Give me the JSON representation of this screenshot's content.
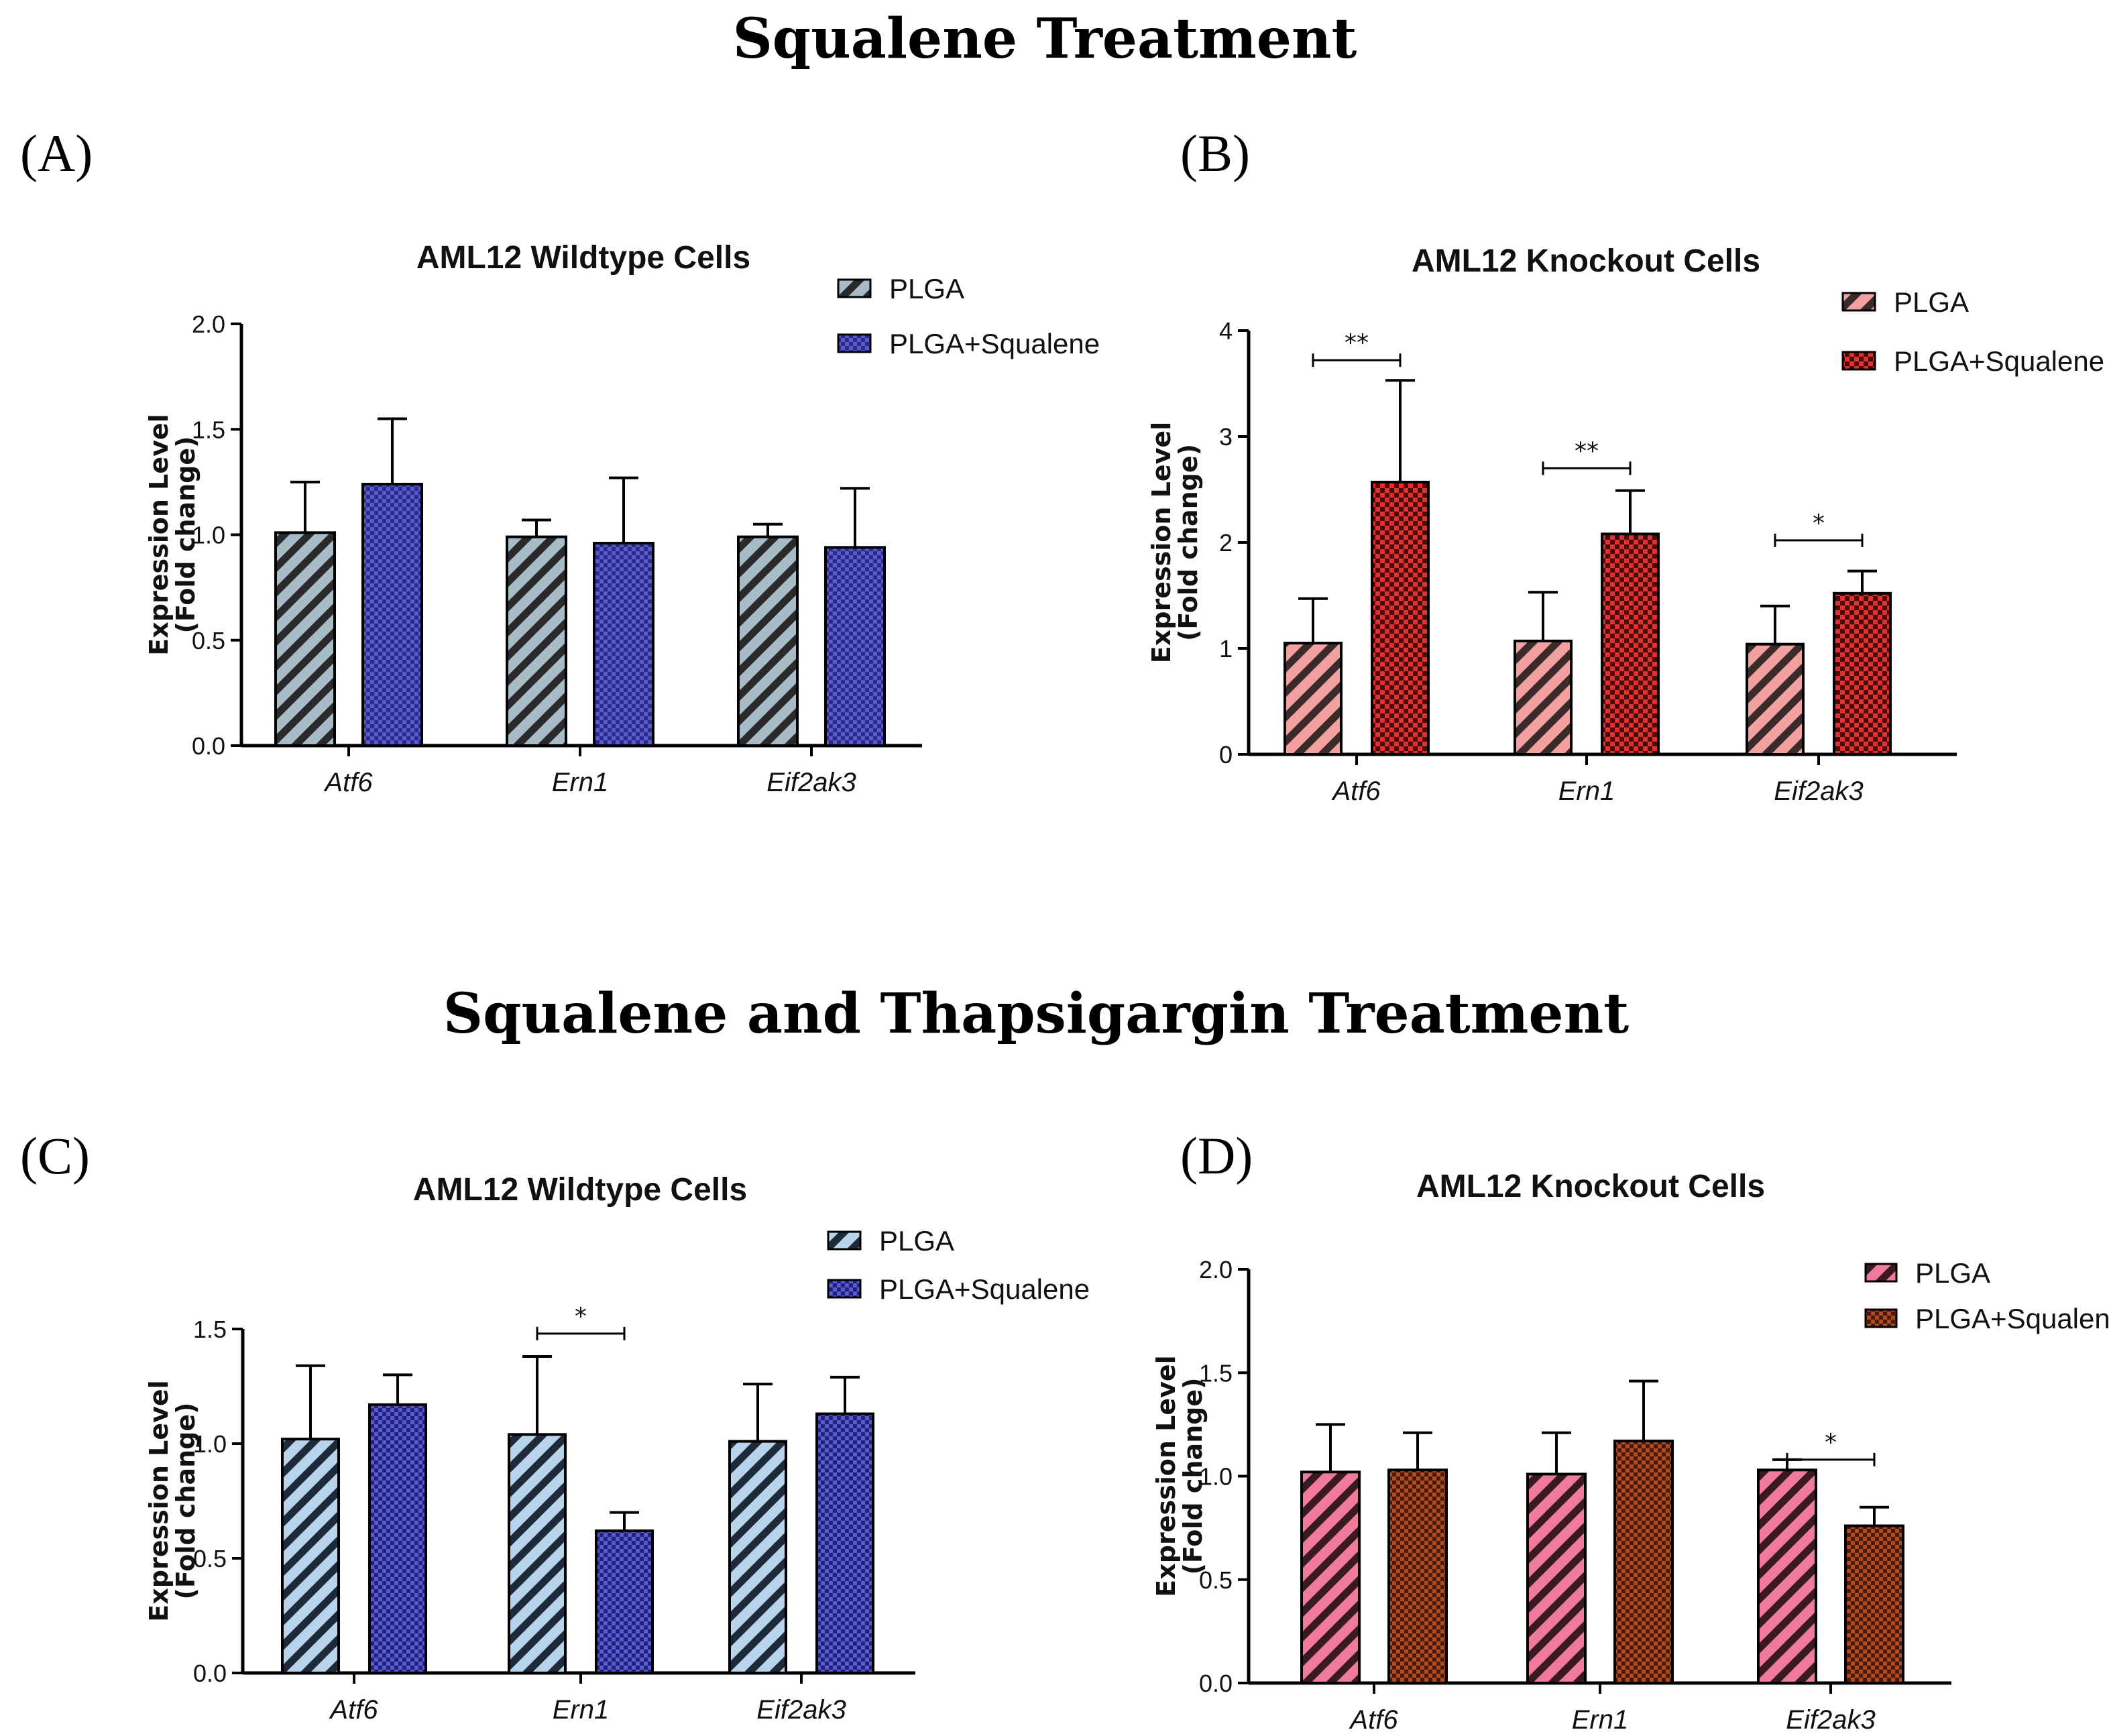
{
  "sections": {
    "top_title": "Squalene Treatment",
    "bottom_title": "Squalene and Thapsigargin Treatment"
  },
  "colors": {
    "wt_plga_stripe": "#a8bcc8",
    "wt_squalene": "#4a4ab8",
    "ko_plga_stripe": "#f2a0a0",
    "ko_squalene": "#d02020",
    "c_plga_stripe": "#b8d4ec",
    "c_squalene": "#4a4ac0",
    "d_plga_stripe": "#f07a9c",
    "d_squalene": "#a03c1c"
  },
  "chart_data": [
    {
      "panel": "(A)",
      "type": "bar",
      "title": "AML12 Wildtype Cells",
      "xlabel": "",
      "ylabel": "Expression Level",
      "ylabel2": "(Fold change)",
      "categories": [
        "Atf6",
        "Ern1",
        "Eif2ak3"
      ],
      "ylim": [
        0,
        2.0
      ],
      "yticks": [
        "0.0",
        "0.5",
        "1.0",
        "1.5",
        "2.0"
      ],
      "series": [
        {
          "name": "PLGA",
          "values": [
            1.01,
            0.99,
            0.99
          ],
          "errors": [
            0.24,
            0.08,
            0.06
          ]
        },
        {
          "name": "PLGA+Squalene",
          "values": [
            1.24,
            0.96,
            0.94
          ],
          "errors": [
            0.31,
            0.31,
            0.28
          ]
        }
      ],
      "significance": []
    },
    {
      "panel": "(B)",
      "type": "bar",
      "title": "AML12 Knockout Cells",
      "xlabel": "",
      "ylabel": "Expression Level",
      "ylabel2": "(Fold change)",
      "categories": [
        "Atf6",
        "Ern1",
        "Eif2ak3"
      ],
      "ylim": [
        0,
        4
      ],
      "yticks": [
        "0",
        "1",
        "2",
        "3",
        "4"
      ],
      "series": [
        {
          "name": "PLGA",
          "values": [
            1.05,
            1.07,
            1.04
          ],
          "errors": [
            0.42,
            0.46,
            0.36
          ]
        },
        {
          "name": "PLGA+Squalene",
          "values": [
            2.57,
            2.08,
            1.52
          ],
          "errors": [
            0.96,
            0.41,
            0.21
          ]
        }
      ],
      "significance": [
        {
          "category": 0,
          "label": "**",
          "y": 3.72
        },
        {
          "category": 1,
          "label": "**",
          "y": 2.7
        },
        {
          "category": 2,
          "label": "*",
          "y": 2.02
        }
      ]
    },
    {
      "panel": "(C)",
      "type": "bar",
      "title": "AML12 Wildtype Cells",
      "xlabel": "",
      "ylabel": "Expression Level",
      "ylabel2": "(Fold change)",
      "categories": [
        "Atf6",
        "Ern1",
        "Eif2ak3"
      ],
      "ylim": [
        0,
        1.5
      ],
      "yticks": [
        "0.0",
        "0.5",
        "1.0",
        "1.5"
      ],
      "series": [
        {
          "name": "PLGA",
          "values": [
            1.02,
            1.04,
            1.01
          ],
          "errors": [
            0.32,
            0.34,
            0.25
          ]
        },
        {
          "name": "PLGA+Squalene",
          "values": [
            1.17,
            0.62,
            1.13
          ],
          "errors": [
            0.13,
            0.08,
            0.16
          ]
        }
      ],
      "significance": [
        {
          "category": 1,
          "label": "*",
          "y": 1.48
        }
      ]
    },
    {
      "panel": "(D)",
      "type": "bar",
      "title": "AML12 Knockout Cells",
      "xlabel": "",
      "ylabel": "Expression Level",
      "ylabel2": "(Fold change)",
      "categories": [
        "Atf6",
        "Ern1",
        "Eif2ak3"
      ],
      "ylim": [
        0,
        2.0
      ],
      "yticks": [
        "0.0",
        "0.5",
        "1.0",
        "1.5",
        "2.0"
      ],
      "series": [
        {
          "name": "PLGA",
          "values": [
            1.02,
            1.01,
            1.03
          ],
          "errors": [
            0.23,
            0.2,
            0.05
          ]
        },
        {
          "name": "PLGA+Squalene",
          "values": [
            1.03,
            1.17,
            0.76
          ],
          "errors": [
            0.18,
            0.29,
            0.09
          ]
        }
      ],
      "significance": [
        {
          "category": 2,
          "label": "*",
          "y": 1.08
        }
      ]
    }
  ]
}
